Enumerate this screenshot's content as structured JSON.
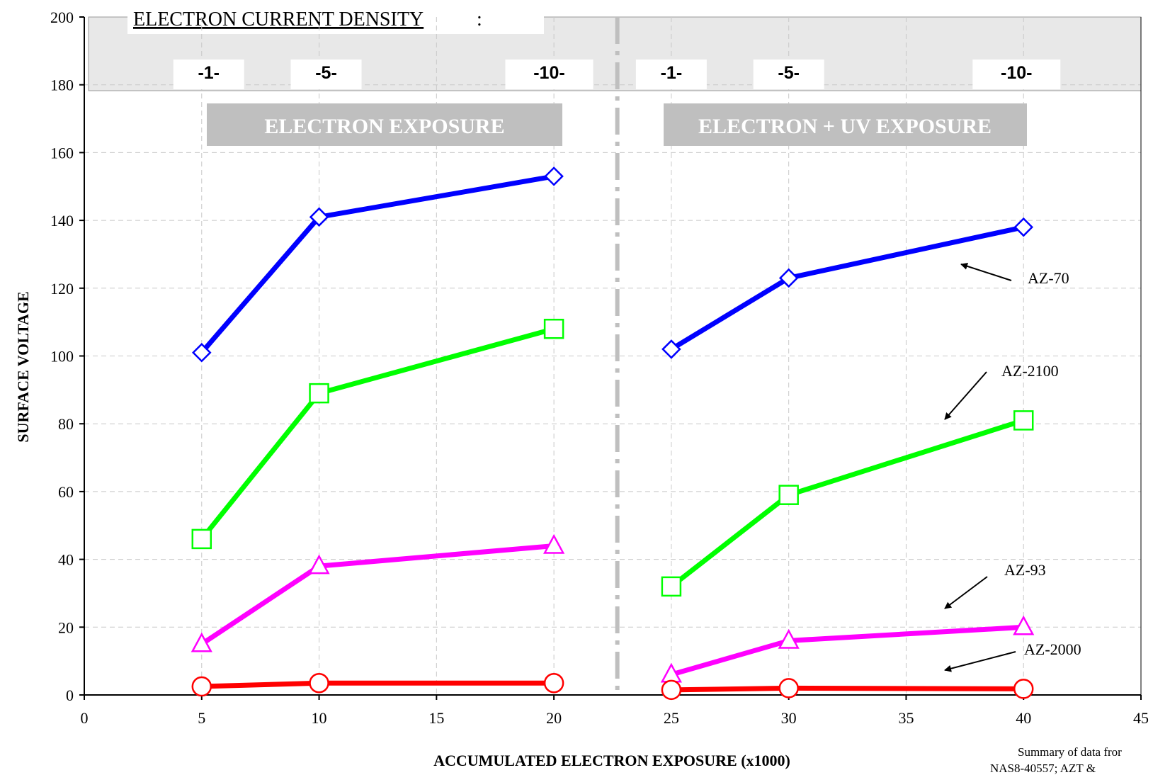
{
  "chart_data": {
    "type": "line",
    "xlabel": "ACCUMULATED ELECTRON EXPOSURE (x1000)",
    "ylabel": "SURFACE VOLTAGE",
    "xlim": [
      0,
      45
    ],
    "ylim": [
      0,
      200
    ],
    "xticks": [
      0,
      5,
      10,
      15,
      20,
      25,
      30,
      35,
      40,
      45
    ],
    "yticks": [
      0,
      20,
      40,
      60,
      80,
      100,
      120,
      140,
      160,
      180,
      200
    ],
    "grid": true,
    "density_header": {
      "title": "ELECTRON CURRENT DENSITY",
      "colon": ":",
      "labels": [
        {
          "text": "-1-",
          "x": 5.3
        },
        {
          "text": "-5-",
          "x": 10.3
        },
        {
          "text": "-10-",
          "x": 19.8
        },
        {
          "text": "-1-",
          "x": 25.0
        },
        {
          "text": "-5-",
          "x": 30.0
        },
        {
          "text": "-10-",
          "x": 39.7
        }
      ]
    },
    "phases": [
      {
        "label": "ELECTRON EXPOSURE"
      },
      {
        "label": "ELECTRON + UV EXPOSURE"
      }
    ],
    "divider_x": 22.7,
    "series": [
      {
        "name": "AZ-70",
        "color": "#0000ff",
        "marker": "diamond",
        "segments": [
          [
            [
              5,
              101
            ],
            [
              10,
              141
            ],
            [
              20,
              153
            ]
          ],
          [
            [
              25,
              102
            ],
            [
              30,
              123
            ],
            [
              40,
              138
            ]
          ]
        ]
      },
      {
        "name": "AZ-2100",
        "color": "#00ff00",
        "marker": "square",
        "segments": [
          [
            [
              5,
              46
            ],
            [
              10,
              89
            ],
            [
              20,
              108
            ]
          ],
          [
            [
              25,
              32
            ],
            [
              30,
              59
            ],
            [
              40,
              81
            ]
          ]
        ]
      },
      {
        "name": "AZ-93",
        "color": "#ff00ff",
        "marker": "triangle",
        "segments": [
          [
            [
              5,
              15
            ],
            [
              10,
              38
            ],
            [
              20,
              44
            ]
          ],
          [
            [
              25,
              6
            ],
            [
              30,
              16
            ],
            [
              40,
              20
            ]
          ]
        ]
      },
      {
        "name": "AZ-2000",
        "color": "#ff0000",
        "marker": "circle",
        "segments": [
          [
            [
              5,
              2.5
            ],
            [
              10,
              3.5
            ],
            [
              20,
              3.5
            ]
          ],
          [
            [
              25,
              1.5
            ],
            [
              30,
              2
            ],
            [
              40,
              1.8
            ]
          ]
        ]
      }
    ],
    "annotations": [
      {
        "text": "AZ-70"
      },
      {
        "text": "AZ-2100"
      },
      {
        "text": "AZ-93"
      },
      {
        "text": "AZ-2000"
      }
    ],
    "footnote": [
      "Summary of data fror",
      "NAS8-40557; AZT &"
    ]
  }
}
